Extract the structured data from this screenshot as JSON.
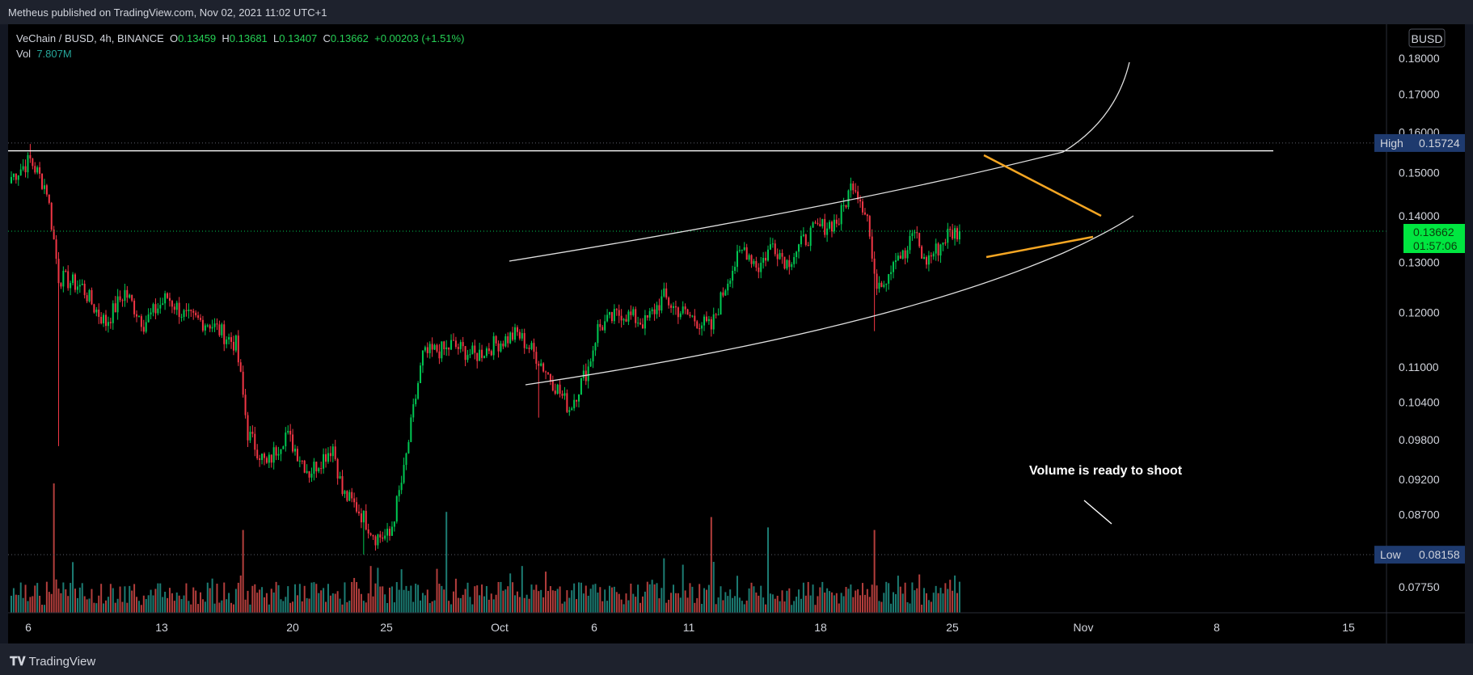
{
  "attribution": "Metheus published on TradingView.com, Nov 02, 2021 11:02 UTC+1",
  "legend": {
    "symbol": "VeChain / BUSD, 4h, BINANCE",
    "open_label": "O",
    "open": "0.13459",
    "high_label": "H",
    "high": "0.13681",
    "low_label": "L",
    "low": "0.13407",
    "close_label": "C",
    "close": "0.13662",
    "change": "+0.00203 (+1.51%)",
    "vol_label": "Vol",
    "vol": "7.807M"
  },
  "currency_badge": "BUSD",
  "price_ticks": [
    "0.18000",
    "0.17000",
    "0.16000",
    "0.15000",
    "0.14000",
    "0.13000",
    "0.12000",
    "0.11000",
    "0.10400",
    "0.09800",
    "0.09200",
    "0.08700",
    "0.07750"
  ],
  "markers": {
    "high_label": "High",
    "high_value": "0.15724",
    "low_label": "Low",
    "low_value": "0.08158",
    "last_price": "0.13662",
    "countdown": "01:57:06"
  },
  "date_ticks": [
    "6",
    "13",
    "20",
    "25",
    "Oct",
    "6",
    "11",
    "18",
    "25",
    "Nov",
    "8",
    "15"
  ],
  "annotation": "Volume is ready to shoot",
  "footer_logo": "TradingView",
  "colors": {
    "up": "#00c853",
    "down": "#f23645",
    "vol_up": "#26a69a",
    "vol_down": "#ef5350",
    "pattern": "#f5a623",
    "last_price_bg": "#00e640",
    "marker_bg": "#1e3a6e"
  },
  "icons": {
    "footer": "tradingview-logo-icon"
  },
  "chart_data": {
    "type": "candlestick",
    "timeframe": "4h",
    "price_scale": "log",
    "ylim": [
      0.075,
      0.185
    ],
    "x_labels": [
      "6",
      "13",
      "20",
      "25",
      "Oct",
      "6",
      "11",
      "18",
      "25",
      "Nov",
      "8",
      "15"
    ],
    "price_anchors": {
      "t": [
        0,
        8,
        10,
        15,
        20,
        30,
        35,
        40,
        48,
        56,
        66,
        74,
        84,
        95,
        100,
        108,
        116,
        126,
        136,
        140,
        146,
        154,
        160,
        166,
        174,
        180,
        184,
        186,
        196,
        204,
        214,
        222,
        236,
        244,
        248,
        258,
        268,
        276,
        280,
        288,
        296,
        304,
        310,
        316,
        322,
        328,
        336,
        340,
        350,
        356,
        362,
        365,
        370,
        374,
        378,
        382,
        386,
        392,
        396,
        401
      ],
      "price": [
        0.149,
        0.153,
        0.151,
        0.146,
        0.127,
        0.125,
        0.121,
        0.118,
        0.124,
        0.118,
        0.123,
        0.119,
        0.118,
        0.114,
        0.099,
        0.094,
        0.099,
        0.093,
        0.097,
        0.09,
        0.088,
        0.084,
        0.084,
        0.093,
        0.112,
        0.113,
        0.113,
        0.114,
        0.112,
        0.114,
        0.116,
        0.112,
        0.103,
        0.11,
        0.117,
        0.12,
        0.118,
        0.123,
        0.121,
        0.119,
        0.117,
        0.128,
        0.133,
        0.129,
        0.134,
        0.13,
        0.135,
        0.137,
        0.139,
        0.148,
        0.14,
        0.126,
        0.127,
        0.132,
        0.131,
        0.137,
        0.13,
        0.133,
        0.136,
        0.1366
      ]
    },
    "wick_extremes": [
      {
        "t": 20,
        "low": 0.097
      },
      {
        "t": 8,
        "high": 0.157
      },
      {
        "t": 149,
        "low": 0.0816
      },
      {
        "t": 223,
        "low": 0.1015
      },
      {
        "t": 356,
        "high": 0.148
      },
      {
        "t": 365,
        "low": 0.1165
      }
    ],
    "horizontal_levels": [
      {
        "name": "High",
        "price": 0.15724
      },
      {
        "name": "Low",
        "price": 0.08158
      },
      {
        "name": "Resistance",
        "price": 0.1553
      },
      {
        "name": "Last",
        "price": 0.13662
      }
    ],
    "volume_spikes": [
      {
        "t": 18,
        "volume": 5.0
      },
      {
        "t": 98,
        "volume": 3.2
      },
      {
        "t": 184,
        "volume": 3.9
      },
      {
        "t": 296,
        "volume": 3.7
      },
      {
        "t": 320,
        "volume": 3.3
      },
      {
        "t": 365,
        "volume": 3.2
      }
    ],
    "annotation": "Volume is ready to shoot"
  }
}
